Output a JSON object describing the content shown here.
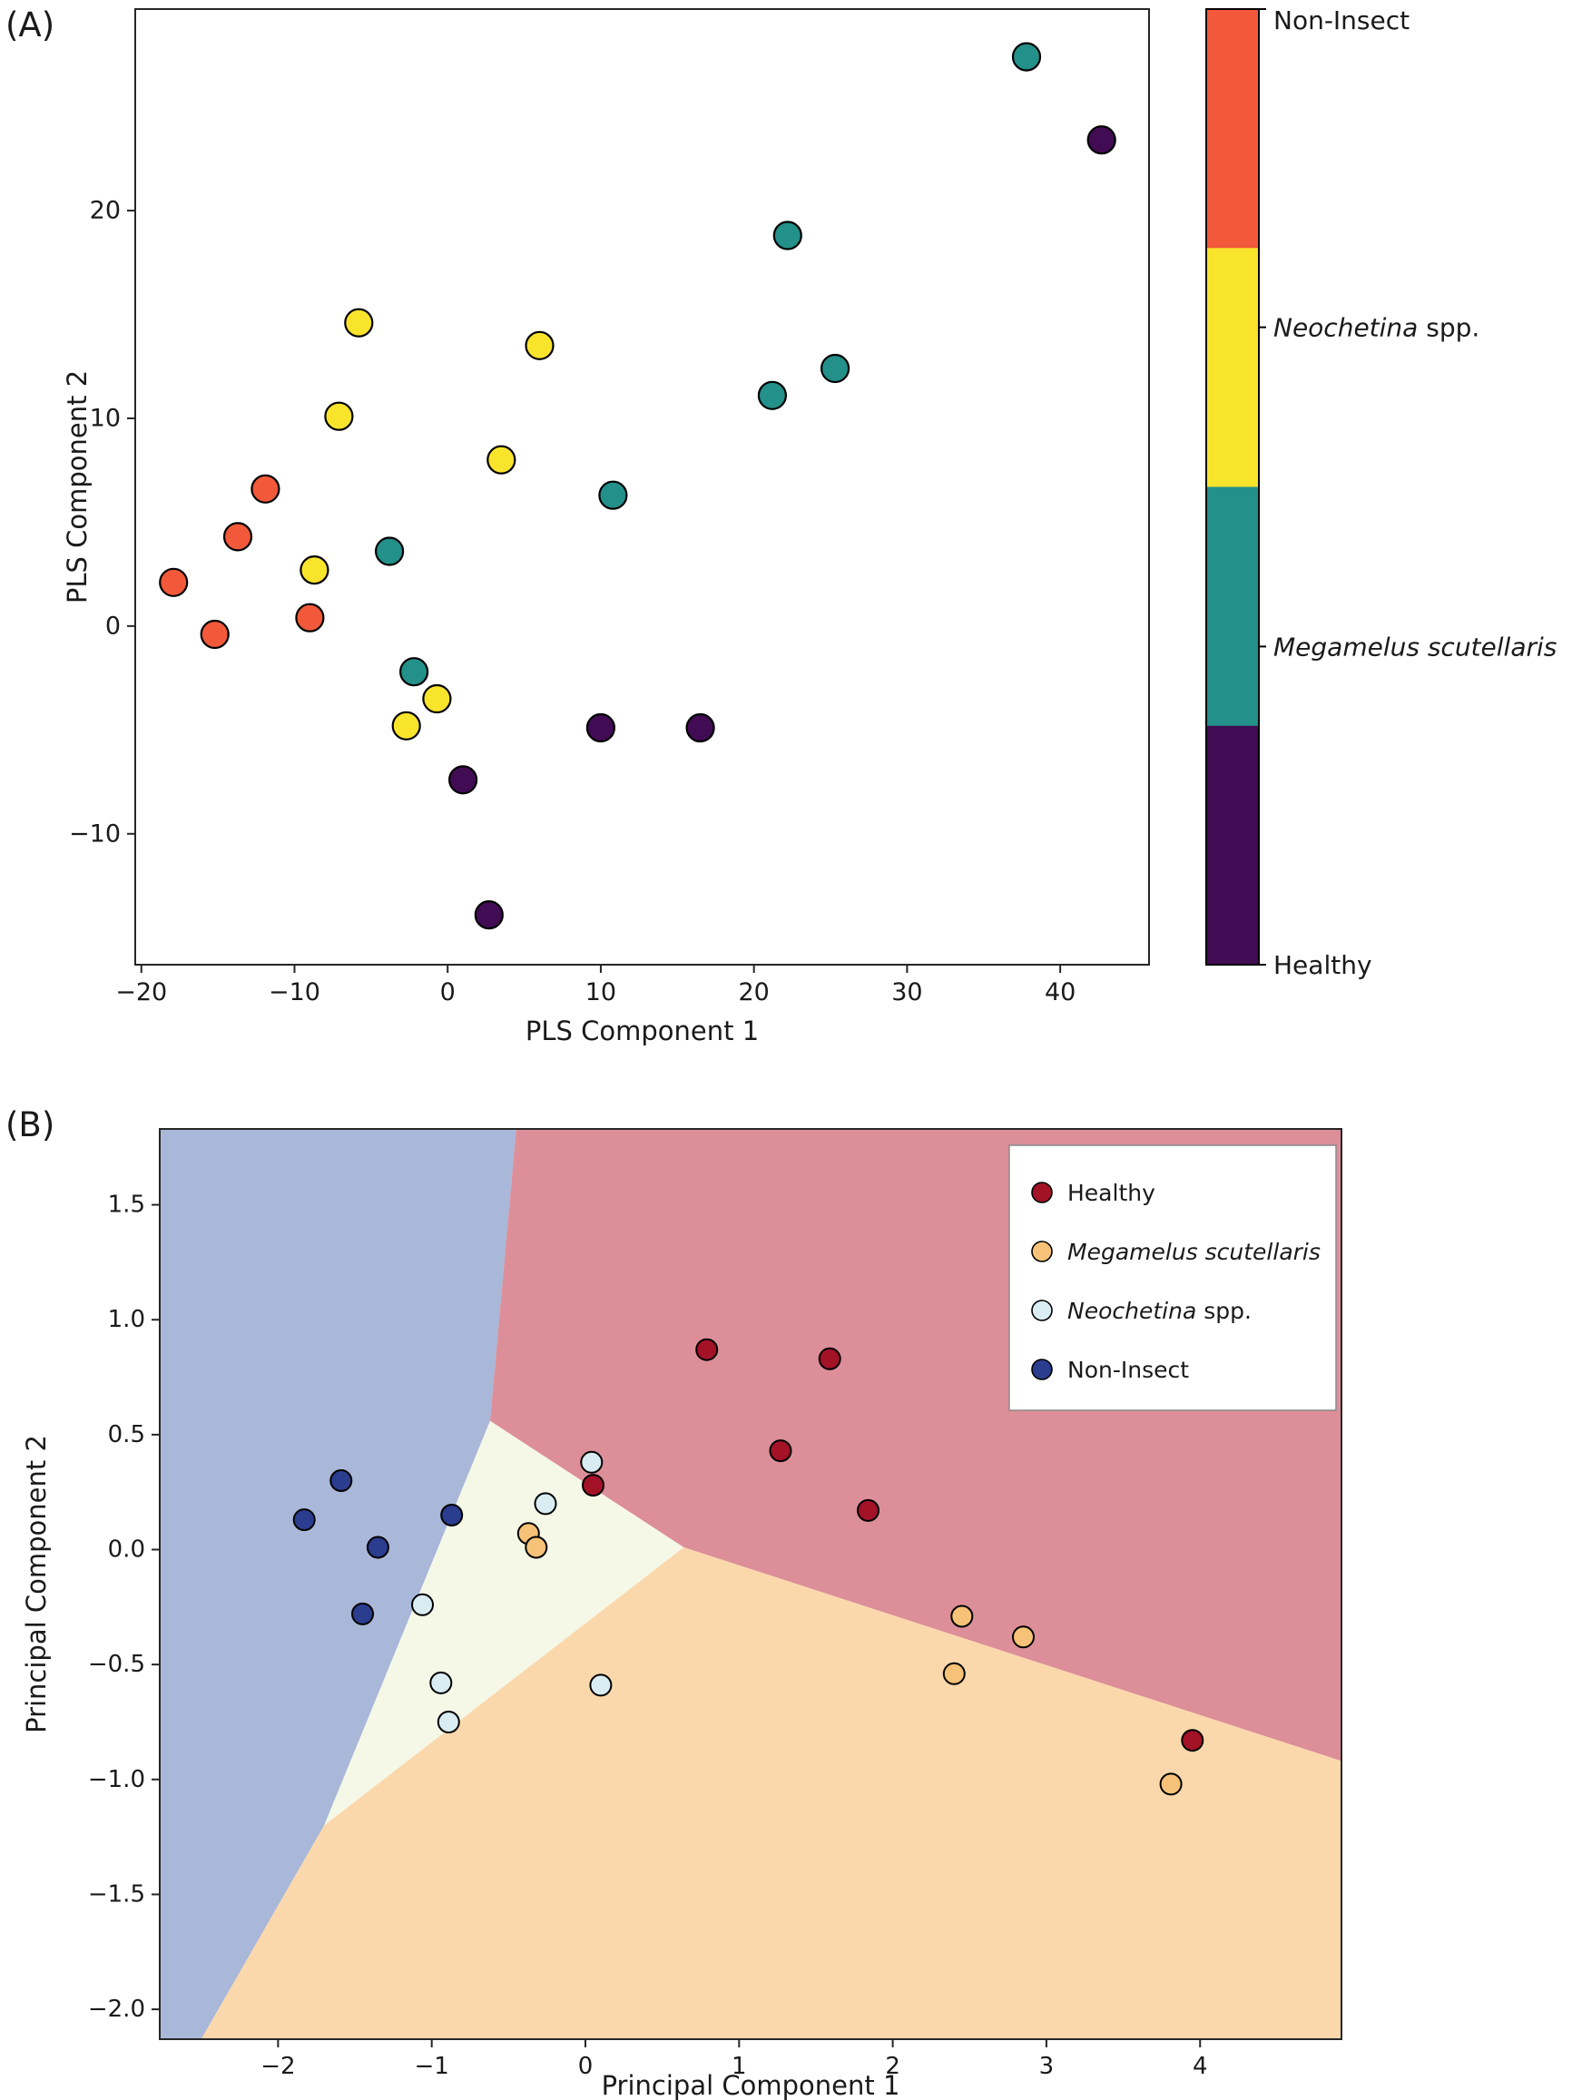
{
  "figure": {
    "panel_a_label": "(A)",
    "panel_b_label": "(B)"
  },
  "chart_data": [
    {
      "id": "panel-a",
      "type": "scatter",
      "title": "",
      "xlabel": "PLS Component 1",
      "ylabel": "PLS Component 2",
      "xlim": [
        -20.4,
        45.8
      ],
      "ylim": [
        -16.3,
        29.7
      ],
      "xticks": [
        -20,
        -10,
        0,
        10,
        20,
        30,
        40
      ],
      "xtick_labels": [
        "−20",
        "−10",
        "0",
        "10",
        "20",
        "30",
        "40"
      ],
      "yticks": [
        -10,
        0,
        10,
        20
      ],
      "ytick_labels": [
        "−10",
        "0",
        "10",
        "20"
      ],
      "grid": false,
      "series": [
        {
          "name": "Non-Insect",
          "color": "#f2593a",
          "points": [
            [
              -17.9,
              2.1
            ],
            [
              -15.2,
              -0.4
            ],
            [
              -13.7,
              4.3
            ],
            [
              -11.9,
              6.6
            ],
            [
              -9.0,
              0.4
            ]
          ]
        },
        {
          "name": "Neochetina spp.",
          "color": "#f9e42c",
          "points": [
            [
              -8.7,
              2.7
            ],
            [
              -7.1,
              10.1
            ],
            [
              -5.8,
              14.6
            ],
            [
              -2.7,
              -4.8
            ],
            [
              -0.7,
              -3.5
            ],
            [
              3.5,
              8.0
            ],
            [
              6.0,
              13.5
            ]
          ]
        },
        {
          "name": "Megamelus scutellaris",
          "color": "#23908a",
          "points": [
            [
              -3.8,
              3.6
            ],
            [
              -2.2,
              -2.2
            ],
            [
              10.8,
              6.3
            ],
            [
              21.2,
              11.1
            ],
            [
              22.2,
              18.8
            ],
            [
              25.3,
              12.4
            ],
            [
              37.8,
              27.4
            ]
          ]
        },
        {
          "name": "Healthy",
          "color": "#410c54",
          "points": [
            [
              1.0,
              -7.4
            ],
            [
              2.7,
              -13.9
            ],
            [
              10.0,
              -4.9
            ],
            [
              16.5,
              -4.9
            ],
            [
              42.7,
              23.4
            ]
          ]
        }
      ],
      "colorbar": {
        "segments_top_to_bottom": [
          "#f2593a",
          "#f9e42c",
          "#23908a",
          "#410c54"
        ],
        "labels": [
          {
            "italic": "",
            "rest": "Non-Insect",
            "frac": 0
          },
          {
            "italic": "Neochetina",
            "rest": " spp.",
            "frac": 0.333
          },
          {
            "italic": "Megamelus scutellaris",
            "rest": "",
            "frac": 0.667
          },
          {
            "italic": "",
            "rest": "Healthy",
            "frac": 1
          }
        ]
      }
    },
    {
      "id": "panel-b",
      "type": "scatter",
      "title": "",
      "xlabel": "Principal Component 1",
      "ylabel": "Principal Component 2",
      "xlim": [
        -2.77,
        4.92
      ],
      "ylim": [
        -2.13,
        1.83
      ],
      "xticks": [
        -2,
        -1,
        0,
        1,
        2,
        3,
        4
      ],
      "xtick_labels": [
        "−2",
        "−1",
        "0",
        "1",
        "2",
        "3",
        "4"
      ],
      "yticks": [
        -2.0,
        -1.5,
        -1.0,
        -0.5,
        0.0,
        0.5,
        1.0,
        1.5
      ],
      "ytick_labels": [
        "−2.0",
        "−1.5",
        "−1.0",
        "−0.5",
        "0.0",
        "0.5",
        "1.0",
        "1.5"
      ],
      "grid": false,
      "decision_regions": [
        {
          "name": "region-non-insect",
          "color": "#a9b7d8",
          "polygon": [
            [
              -2.77,
              1.83
            ],
            [
              -0.45,
              1.83
            ],
            [
              -0.62,
              0.56
            ],
            [
              -1.7,
              -1.2
            ],
            [
              -2.5,
              -2.13
            ],
            [
              -2.77,
              -2.13
            ]
          ]
        },
        {
          "name": "region-healthy",
          "color": "#dc8f98",
          "polygon": [
            [
              -0.45,
              1.83
            ],
            [
              4.92,
              1.83
            ],
            [
              4.92,
              -0.92
            ],
            [
              0.64,
              0.01
            ],
            [
              -0.62,
              0.56
            ]
          ]
        },
        {
          "name": "region-neochetina",
          "color": "#f5f8e7",
          "polygon": [
            [
              -0.62,
              0.56
            ],
            [
              0.64,
              0.01
            ],
            [
              -1.7,
              -1.2
            ]
          ]
        },
        {
          "name": "region-megamelus",
          "color": "#fbd8ac",
          "polygon": [
            [
              -1.7,
              -1.2
            ],
            [
              0.64,
              0.01
            ],
            [
              4.92,
              -0.92
            ],
            [
              4.92,
              -2.13
            ],
            [
              -2.5,
              -2.13
            ]
          ]
        }
      ],
      "series": [
        {
          "name": "Healthy",
          "color": "#a31227",
          "points": [
            [
              0.05,
              0.28
            ],
            [
              0.79,
              0.87
            ],
            [
              1.27,
              0.43
            ],
            [
              1.59,
              0.83
            ],
            [
              1.84,
              0.17
            ],
            [
              3.95,
              -0.83
            ]
          ]
        },
        {
          "name": "Megamelus scutellaris",
          "color": "#f6c277",
          "points": [
            [
              -0.37,
              0.07
            ],
            [
              -0.32,
              0.01
            ],
            [
              2.45,
              -0.29
            ],
            [
              2.85,
              -0.38
            ],
            [
              2.4,
              -0.54
            ],
            [
              3.81,
              -1.02
            ]
          ]
        },
        {
          "name": "Neochetina spp.",
          "color": "#d8ecf2",
          "points": [
            [
              0.04,
              0.38
            ],
            [
              -0.26,
              0.2
            ],
            [
              -1.06,
              -0.24
            ],
            [
              -0.94,
              -0.58
            ],
            [
              -0.89,
              -0.75
            ],
            [
              0.1,
              -0.59
            ]
          ]
        },
        {
          "name": "Non-Insect",
          "color": "#2b3d8f",
          "points": [
            [
              -1.59,
              0.3
            ],
            [
              -1.83,
              0.13
            ],
            [
              -1.35,
              0.01
            ],
            [
              -0.87,
              0.15
            ],
            [
              -1.45,
              -0.28
            ]
          ]
        }
      ],
      "legend": {
        "position": "upper right",
        "entries": [
          {
            "italic": "",
            "rest": "Healthy",
            "color": "#a31227"
          },
          {
            "italic": "Megamelus scutellaris",
            "rest": "",
            "color": "#f6c277"
          },
          {
            "italic": "Neochetina",
            "rest": " spp.",
            "color": "#d8ecf2"
          },
          {
            "italic": "",
            "rest": "Non-Insect",
            "color": "#2b3d8f"
          }
        ]
      }
    }
  ]
}
